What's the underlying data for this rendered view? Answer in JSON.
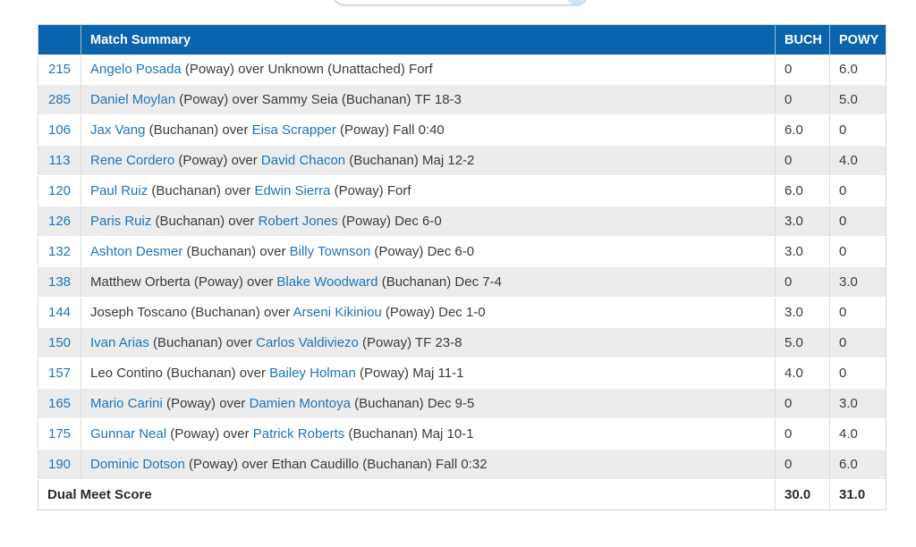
{
  "search": {
    "value": "",
    "placeholder": ""
  },
  "colors": {
    "header_bg": "#0a64ad",
    "link": "#1c76bd",
    "row_stripe": "#ececec",
    "border": "#dcdcdc",
    "text": "#3b3b3b"
  },
  "table": {
    "headers": {
      "num": "",
      "summary": "Match Summary",
      "buch": "BUCH",
      "powy": "POWY"
    },
    "rows": [
      {
        "num": "215",
        "a": "Angelo Posada",
        "b": " (Poway) over Unknown (Unattached) Forf",
        "c": "",
        "d": "",
        "buch": "0",
        "powy": "6.0"
      },
      {
        "num": "285",
        "a": "Daniel Moylan",
        "b": " (Poway) over Sammy Seia (Buchanan) TF 18-3",
        "c": "",
        "d": "",
        "buch": "0",
        "powy": "5.0"
      },
      {
        "num": "106",
        "a": "Jax Vang",
        "b": " (Buchanan) over ",
        "c": "Eisa Scrapper",
        "d": " (Poway) Fall 0:40",
        "buch": "6.0",
        "powy": "0"
      },
      {
        "num": "113",
        "a": "Rene Cordero",
        "b": " (Poway) over ",
        "c": "David Chacon",
        "d": " (Buchanan) Maj 12-2",
        "buch": "0",
        "powy": "4.0"
      },
      {
        "num": "120",
        "a": "Paul Ruiz",
        "b": " (Buchanan) over ",
        "c": "Edwin Sierra",
        "d": " (Poway) Forf",
        "buch": "6.0",
        "powy": "0"
      },
      {
        "num": "126",
        "a": "Paris Ruiz",
        "b": " (Buchanan) over ",
        "c": "Robert Jones",
        "d": " (Poway) Dec 6-0",
        "buch": "3.0",
        "powy": "0"
      },
      {
        "num": "132",
        "a": "Ashton Desmer",
        "b": " (Buchanan) over ",
        "c": "Billy Townson",
        "d": " (Poway) Dec 6-0",
        "buch": "3.0",
        "powy": "0"
      },
      {
        "num": "138",
        "a": "",
        "b": "Matthew Orberta (Poway) over ",
        "c": "Blake Woodward",
        "d": " (Buchanan) Dec 7-4",
        "buch": "0",
        "powy": "3.0"
      },
      {
        "num": "144",
        "a": "",
        "b": "Joseph Toscano (Buchanan) over ",
        "c": "Arseni Kikiniou",
        "d": " (Poway) Dec 1-0",
        "buch": "3.0",
        "powy": "0"
      },
      {
        "num": "150",
        "a": "Ivan Arias",
        "b": " (Buchanan) over ",
        "c": "Carlos Valdiviezo",
        "d": " (Poway) TF 23-8",
        "buch": "5.0",
        "powy": "0"
      },
      {
        "num": "157",
        "a": "",
        "b": "Leo Contino (Buchanan) over ",
        "c": "Bailey Holman",
        "d": " (Poway) Maj 11-1",
        "buch": "4.0",
        "powy": "0"
      },
      {
        "num": "165",
        "a": "Mario Carini",
        "b": " (Poway) over ",
        "c": "Damien Montoya",
        "d": " (Buchanan) Dec 9-5",
        "buch": "0",
        "powy": "3.0"
      },
      {
        "num": "175",
        "a": "Gunnar Neal",
        "b": " (Poway) over ",
        "c": "Patrick Roberts",
        "d": " (Buchanan) Maj 10-1",
        "buch": "0",
        "powy": "4.0"
      },
      {
        "num": "190",
        "a": "Dominic Dotson",
        "b": " (Poway) over Ethan Caudillo (Buchanan) Fall 0:32",
        "c": "",
        "d": "",
        "buch": "0",
        "powy": "6.0"
      }
    ],
    "footer": {
      "label": "Dual Meet Score",
      "buch": "30.0",
      "powy": "31.0"
    }
  }
}
